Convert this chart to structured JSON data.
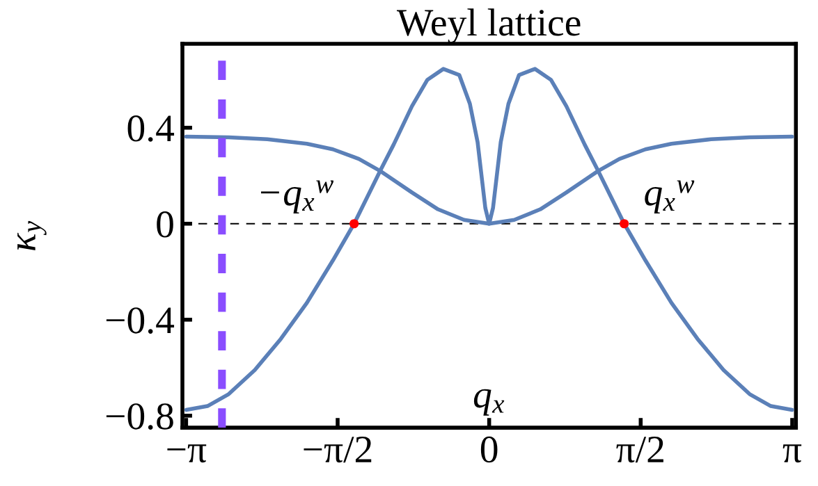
{
  "chart_data": {
    "type": "line",
    "title": "Weyl lattice",
    "xlabel": "q$_{x}$",
    "ylabel": "κ$_{y}$",
    "xlim": [
      -3.18,
      3.18
    ],
    "ylim": [
      -0.85,
      0.75
    ],
    "xticks": [
      {
        "value": -3.1416,
        "label": "−π"
      },
      {
        "value": -1.5708,
        "label": "−π/2"
      },
      {
        "value": 0,
        "label": "0"
      },
      {
        "value": 1.5708,
        "label": "π/2"
      },
      {
        "value": 3.1416,
        "label": "π"
      }
    ],
    "yticks": [
      {
        "value": -0.8,
        "label": "−0.8"
      },
      {
        "value": -0.4,
        "label": "−0.4"
      },
      0,
      0.4
    ],
    "series": [
      {
        "color": "#5b80b8",
        "x": [
          -3.14,
          -2.7,
          -2.3,
          -1.89,
          -1.62,
          -1.35,
          -1.13,
          -0.8,
          -0.53,
          -0.26,
          0,
          0.26,
          0.53,
          0.8,
          1.13,
          1.35,
          1.62,
          1.89,
          2.3,
          2.7,
          3.14
        ],
        "values": [
          0.363,
          0.36,
          0.352,
          0.333,
          0.31,
          0.27,
          0.22,
          0.13,
          0.06,
          0.016,
          0,
          0.016,
          0.06,
          0.13,
          0.22,
          0.27,
          0.31,
          0.333,
          0.352,
          0.36,
          0.363
        ]
      },
      {
        "color": "#5b80b8",
        "x": [
          -3.14,
          -2.92,
          -2.7,
          -2.43,
          -2.16,
          -1.89,
          -1.62,
          -1.4,
          -1.13,
          -0.99,
          -0.8,
          -0.64,
          -0.475,
          -0.31,
          -0.2,
          -0.12,
          -0.04,
          0,
          0.04,
          0.12,
          0.2,
          0.31,
          0.475,
          0.64,
          0.8,
          0.99,
          1.13,
          1.4,
          1.62,
          1.89,
          2.16,
          2.43,
          2.7,
          2.92,
          3.14
        ],
        "values": [
          -0.776,
          -0.76,
          -0.71,
          -0.61,
          -0.48,
          -0.33,
          -0.153,
          0,
          0.22,
          0.33,
          0.49,
          0.6,
          0.645,
          0.62,
          0.5,
          0.34,
          0.066,
          0,
          0.066,
          0.34,
          0.5,
          0.62,
          0.645,
          0.6,
          0.49,
          0.33,
          0.22,
          0,
          -0.153,
          -0.33,
          -0.48,
          -0.61,
          -0.71,
          -0.76,
          -0.776
        ]
      },
      {
        "type": "scatter",
        "color": "#ff0000",
        "x": [
          -1.4,
          1.4
        ],
        "values": [
          0,
          0
        ]
      }
    ],
    "ref_lines": [
      {
        "axis": "y",
        "value": 0,
        "color": "#000000",
        "line_style": "dashed"
      },
      {
        "axis": "x",
        "value": -2.77,
        "color": "#8a4dff",
        "line_style": "dashed"
      }
    ],
    "annotations": [
      {
        "text": "−q$_{x}$$^{w}$",
        "x": -1.4,
        "y": 0
      },
      {
        "text": "q$_{x}$$^{w}$",
        "x": 1.4,
        "y": 0
      }
    ]
  }
}
